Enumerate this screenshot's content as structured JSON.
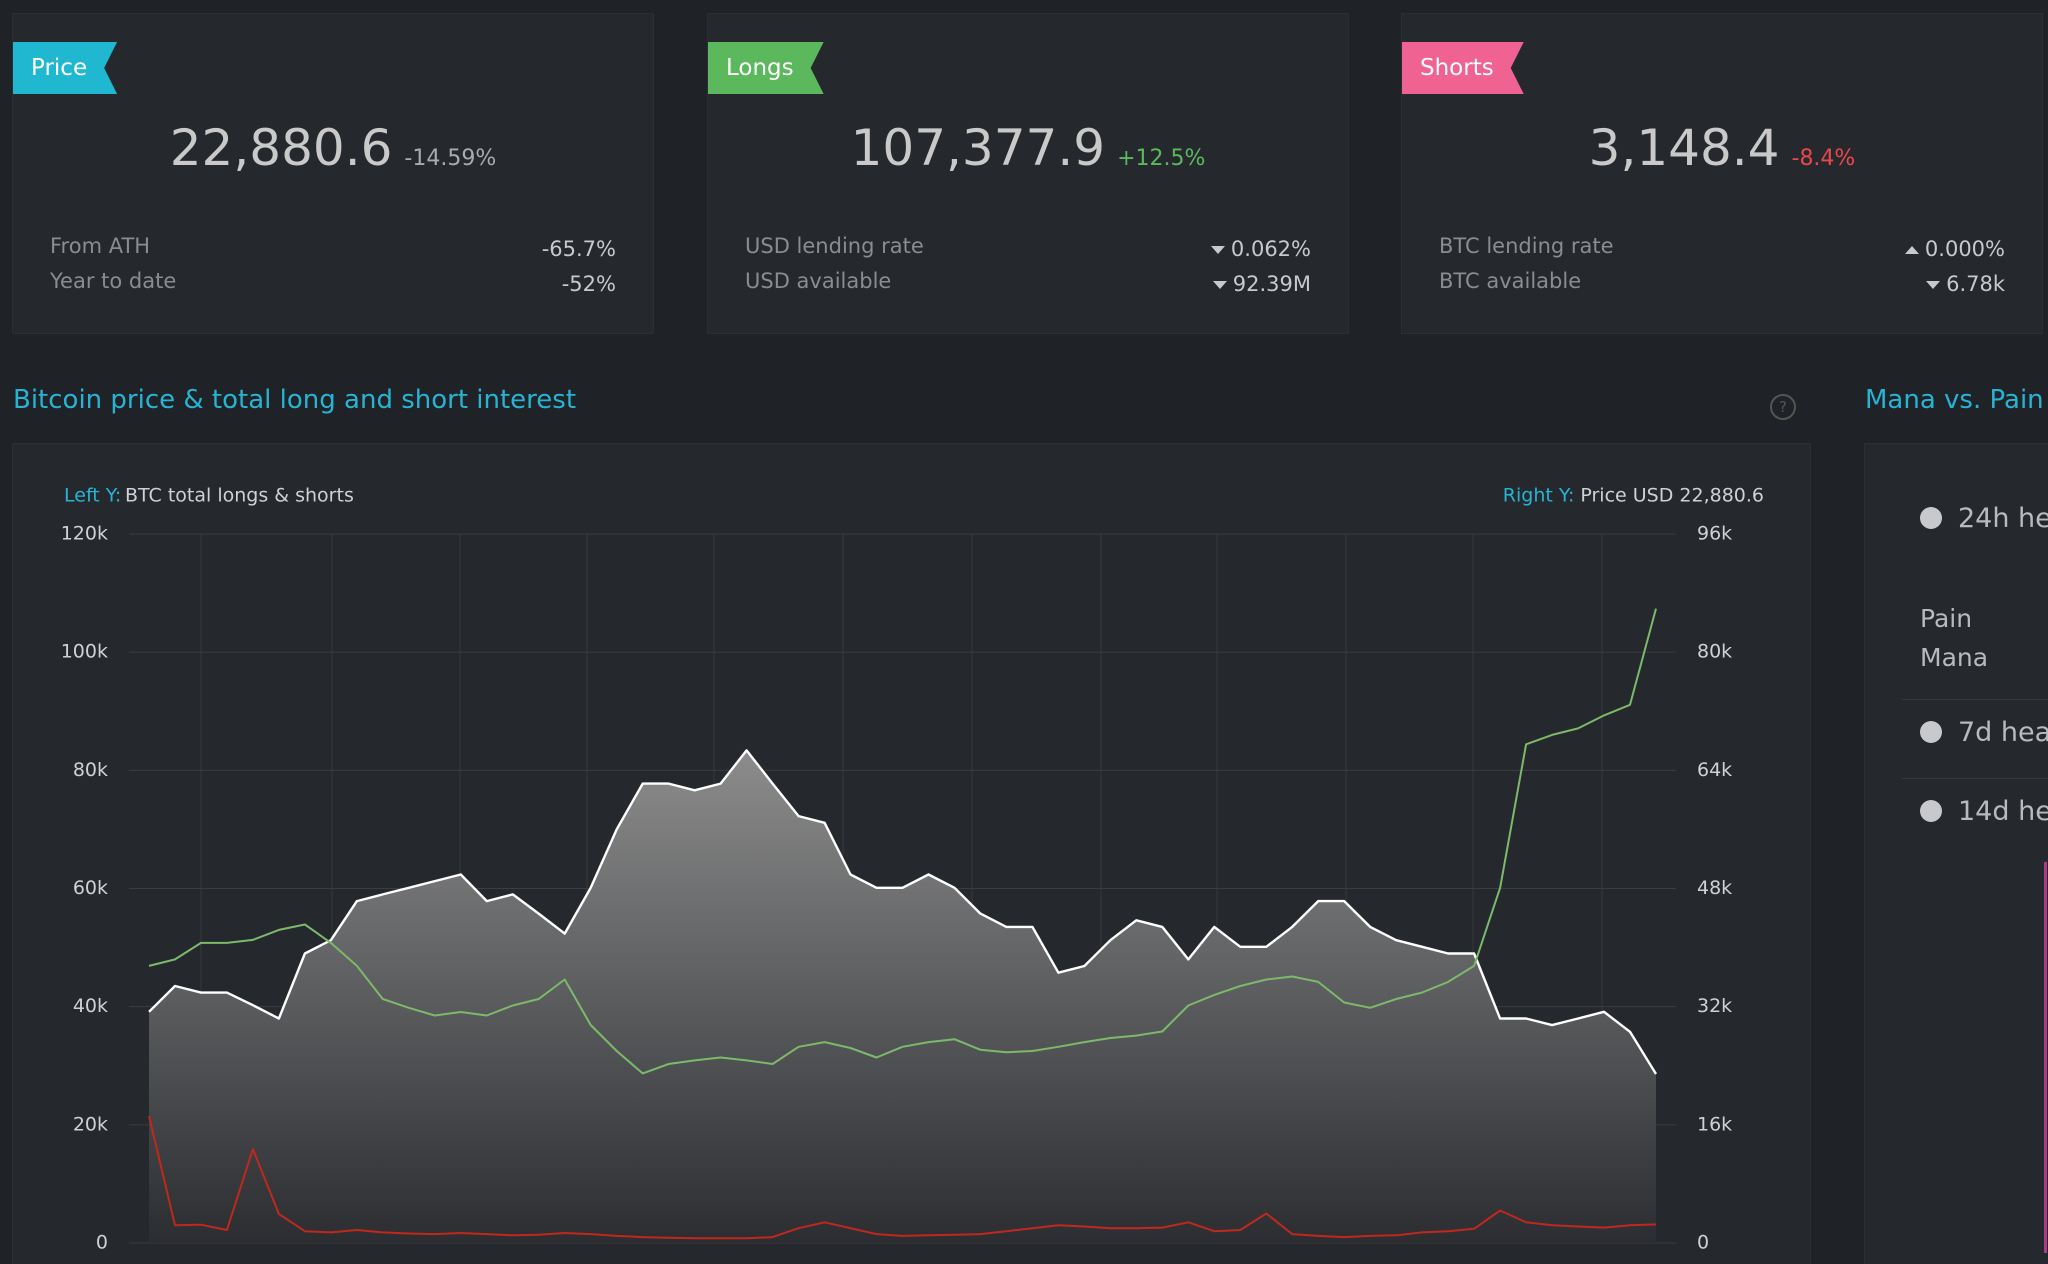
{
  "cards": [
    {
      "tag": "Price",
      "tag_color": "#1fb8d0",
      "value": "22,880.6",
      "change": "-14.59%",
      "change_color": "#a9abae",
      "rows": [
        {
          "label": "From ATH",
          "value": "-65.7%"
        },
        {
          "label": "Year to date",
          "value": "-52%"
        }
      ]
    },
    {
      "tag": "Longs",
      "tag_color": "#5cb85c",
      "value": "107,377.9",
      "change": "+12.5%",
      "change_color": "#5cb85c",
      "rows": [
        {
          "label": "USD lending rate",
          "value": "0.062%",
          "dir": "down"
        },
        {
          "label": "USD available",
          "value": "92.39M",
          "dir": "down"
        }
      ]
    },
    {
      "tag": "Shorts",
      "tag_color": "#f06292",
      "value": "3,148.4",
      "change": "-8.4%",
      "change_color": "#e8474c",
      "rows": [
        {
          "label": "BTC lending rate",
          "value": "0.000%",
          "dir": "up"
        },
        {
          "label": "BTC available",
          "value": "6.78k",
          "dir": "down"
        }
      ]
    }
  ],
  "side": {
    "title": "Mana vs. Pain",
    "items": [
      "24h he",
      "7d hea",
      "14d he"
    ],
    "labels": [
      "Pain",
      "Mana"
    ]
  },
  "chart_data": {
    "type": "line",
    "title": "Bitcoin price & total long and short interest",
    "left_axis": {
      "prefix": "Left Y:",
      "label": "BTC total longs & shorts"
    },
    "right_axis": {
      "prefix": "Right Y:",
      "label": "Price USD 22,880.6"
    },
    "grid": true,
    "categories": [
      null,
      null,
      null,
      null,
      null,
      null,
      null,
      null,
      null,
      null,
      null,
      null,
      null,
      null,
      null,
      null,
      null,
      null,
      null,
      null,
      null,
      null,
      null,
      null,
      null,
      null,
      null,
      null,
      null,
      null,
      null,
      null,
      null,
      null,
      null,
      null,
      null,
      null,
      null,
      null,
      null,
      null,
      null,
      null,
      null,
      null,
      null,
      null,
      null,
      null,
      null,
      null,
      null,
      null,
      null,
      null,
      null,
      null,
      null
    ],
    "ylim": [
      0,
      120000
    ],
    "yticks": [
      0,
      {
        "value": 20000,
        "label": "20k"
      },
      {
        "value": 40000,
        "label": "40k"
      },
      {
        "value": 60000,
        "label": "60k"
      },
      {
        "value": 80000,
        "label": "80k"
      },
      {
        "value": 100000,
        "label": "100k"
      },
      {
        "value": 120000,
        "label": "120k"
      }
    ],
    "y2lim": [
      0,
      96000
    ],
    "y2ticks": [
      0,
      {
        "value": 16000,
        "label": "16k"
      },
      {
        "value": 32000,
        "label": "32k"
      },
      {
        "value": 48000,
        "label": "48k"
      },
      {
        "value": 64000,
        "label": "64k"
      },
      {
        "value": 80000,
        "label": "80k"
      },
      {
        "value": 96000,
        "label": "96k"
      }
    ],
    "series": [
      {
        "name": "Price",
        "color": "#ffffff",
        "axis": "y2",
        "area": true,
        "values": [
          31300,
          34800,
          33900,
          33900,
          32200,
          30400,
          39200,
          41000,
          46300,
          47200,
          48100,
          49000,
          49900,
          46300,
          47200,
          44600,
          41900,
          48100,
          56000,
          62200,
          62200,
          61300,
          62200,
          66700,
          62200,
          57800,
          56900,
          49900,
          48100,
          48100,
          49900,
          48100,
          44600,
          42800,
          42800,
          36600,
          37500,
          41000,
          43700,
          42800,
          38400,
          42800,
          40100,
          40100,
          42800,
          46300,
          46300,
          42800,
          41000,
          40100,
          39200,
          39200,
          30400,
          30400,
          29500,
          30400,
          31300,
          28600,
          22880.6
        ]
      },
      {
        "name": "Longs",
        "color": "#7cb96a",
        "values": [
          46900,
          48000,
          50800,
          50800,
          51300,
          53000,
          53900,
          50800,
          46900,
          41300,
          39800,
          38500,
          39100,
          38500,
          40200,
          41300,
          44600,
          36900,
          32500,
          28700,
          30300,
          30900,
          31400,
          30900,
          30300,
          33200,
          34000,
          33000,
          31400,
          33200,
          34000,
          34500,
          32700,
          32300,
          32500,
          33200,
          34000,
          34700,
          35100,
          35800,
          40200,
          42000,
          43500,
          44600,
          45100,
          44200,
          40700,
          39800,
          41300,
          42400,
          44200,
          46900,
          60100,
          84400,
          86000,
          87100,
          89300,
          91100,
          107377.9
        ]
      },
      {
        "name": "Shorts",
        "color": "#c0281e",
        "values": [
          21500,
          3000,
          3100,
          2200,
          15900,
          4900,
          2000,
          1800,
          2200,
          1800,
          1600,
          1500,
          1700,
          1500,
          1300,
          1400,
          1700,
          1500,
          1200,
          1000,
          900,
          800,
          800,
          800,
          1000,
          2500,
          3500,
          2500,
          1500,
          1200,
          1300,
          1400,
          1500,
          2000,
          2500,
          3000,
          2800,
          2500,
          2500,
          2600,
          3500,
          2000,
          2200,
          5000,
          1500,
          1200,
          1000,
          1200,
          1300,
          1800,
          2000,
          2400,
          5500,
          3500,
          3000,
          2800,
          2600,
          3000,
          3148.4
        ]
      }
    ]
  }
}
